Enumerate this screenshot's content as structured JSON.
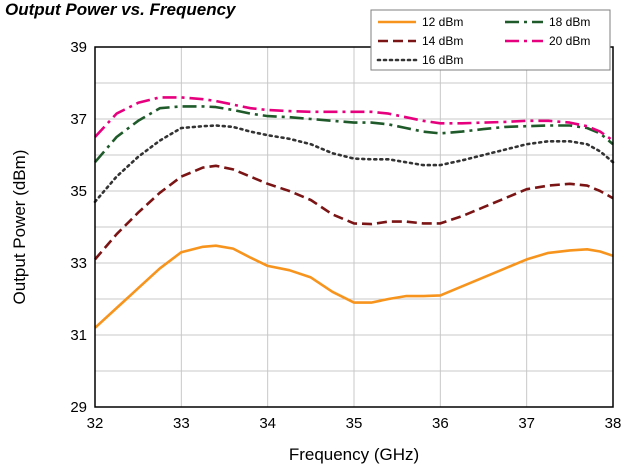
{
  "chart_data": {
    "type": "line",
    "title": "Output Power vs. Frequency",
    "xlabel": "Frequency (GHz)",
    "ylabel": "Output Power (dBm)",
    "xlim": [
      32,
      38
    ],
    "ylim": [
      29,
      39
    ],
    "xticks": [
      32,
      33,
      34,
      35,
      36,
      37,
      38
    ],
    "yticks": [
      29,
      31,
      33,
      35,
      37,
      39
    ],
    "grid": true,
    "legend_position": "top-right",
    "series": [
      {
        "name": "12 dBm",
        "color": "#f7941d",
        "dash": "solid",
        "x": [
          32.0,
          32.25,
          32.5,
          32.75,
          33.0,
          33.25,
          33.4,
          33.6,
          33.8,
          34.0,
          34.25,
          34.5,
          34.75,
          35.0,
          35.2,
          35.4,
          35.6,
          35.8,
          36.0,
          36.25,
          36.5,
          36.75,
          37.0,
          37.25,
          37.5,
          37.7,
          37.85,
          38.0
        ],
        "y": [
          31.2,
          31.75,
          32.3,
          32.85,
          33.3,
          33.45,
          33.48,
          33.4,
          33.15,
          32.92,
          32.8,
          32.6,
          32.2,
          31.9,
          31.9,
          32.0,
          32.08,
          32.08,
          32.1,
          32.35,
          32.6,
          32.85,
          33.1,
          33.28,
          33.35,
          33.38,
          33.32,
          33.2
        ]
      },
      {
        "name": "14 dBm",
        "color": "#7b1414",
        "dash": "dash",
        "x": [
          32.0,
          32.25,
          32.5,
          32.75,
          33.0,
          33.25,
          33.4,
          33.6,
          33.8,
          34.0,
          34.25,
          34.5,
          34.75,
          35.0,
          35.2,
          35.4,
          35.6,
          35.8,
          36.0,
          36.25,
          36.5,
          36.75,
          37.0,
          37.25,
          37.5,
          37.7,
          37.85,
          38.0
        ],
        "y": [
          33.1,
          33.8,
          34.4,
          34.95,
          35.4,
          35.65,
          35.7,
          35.6,
          35.4,
          35.2,
          35.0,
          34.75,
          34.35,
          34.1,
          34.08,
          34.15,
          34.15,
          34.1,
          34.1,
          34.3,
          34.55,
          34.8,
          35.05,
          35.15,
          35.2,
          35.15,
          35.0,
          34.8
        ]
      },
      {
        "name": "16 dBm",
        "color": "#333333",
        "dash": "dot",
        "x": [
          32.0,
          32.25,
          32.5,
          32.75,
          33.0,
          33.25,
          33.4,
          33.6,
          33.8,
          34.0,
          34.25,
          34.5,
          34.75,
          35.0,
          35.2,
          35.4,
          35.6,
          35.8,
          36.0,
          36.25,
          36.5,
          36.75,
          37.0,
          37.25,
          37.5,
          37.7,
          37.85,
          38.0
        ],
        "y": [
          34.7,
          35.4,
          35.95,
          36.4,
          36.75,
          36.8,
          36.82,
          36.78,
          36.65,
          36.55,
          36.45,
          36.3,
          36.05,
          35.9,
          35.88,
          35.88,
          35.8,
          35.72,
          35.72,
          35.85,
          36.0,
          36.15,
          36.3,
          36.38,
          36.38,
          36.3,
          36.1,
          35.8
        ]
      },
      {
        "name": "18 dBm",
        "color": "#1f5a2a",
        "dash": "dashdot",
        "x": [
          32.0,
          32.25,
          32.5,
          32.75,
          33.0,
          33.25,
          33.4,
          33.6,
          33.8,
          34.0,
          34.25,
          34.5,
          34.75,
          35.0,
          35.2,
          35.4,
          35.6,
          35.8,
          36.0,
          36.25,
          36.5,
          36.75,
          37.0,
          37.25,
          37.5,
          37.7,
          37.85,
          38.0
        ],
        "y": [
          35.8,
          36.5,
          36.95,
          37.3,
          37.35,
          37.35,
          37.33,
          37.25,
          37.15,
          37.08,
          37.05,
          37.0,
          36.95,
          36.9,
          36.9,
          36.85,
          36.75,
          36.65,
          36.6,
          36.65,
          36.72,
          36.78,
          36.8,
          36.82,
          36.82,
          36.75,
          36.6,
          36.3
        ]
      },
      {
        "name": "20 dBm",
        "color": "#e6007e",
        "dash": "dashdot",
        "x": [
          32.0,
          32.25,
          32.5,
          32.75,
          33.0,
          33.25,
          33.4,
          33.6,
          33.8,
          34.0,
          34.25,
          34.5,
          34.75,
          35.0,
          35.2,
          35.4,
          35.6,
          35.8,
          36.0,
          36.25,
          36.5,
          36.75,
          37.0,
          37.25,
          37.5,
          37.7,
          37.85,
          38.0
        ],
        "y": [
          36.5,
          37.15,
          37.45,
          37.6,
          37.6,
          37.55,
          37.5,
          37.4,
          37.3,
          37.25,
          37.22,
          37.2,
          37.2,
          37.2,
          37.2,
          37.15,
          37.05,
          36.95,
          36.88,
          36.88,
          36.9,
          36.92,
          36.95,
          36.95,
          36.9,
          36.8,
          36.65,
          36.4
        ]
      }
    ]
  }
}
